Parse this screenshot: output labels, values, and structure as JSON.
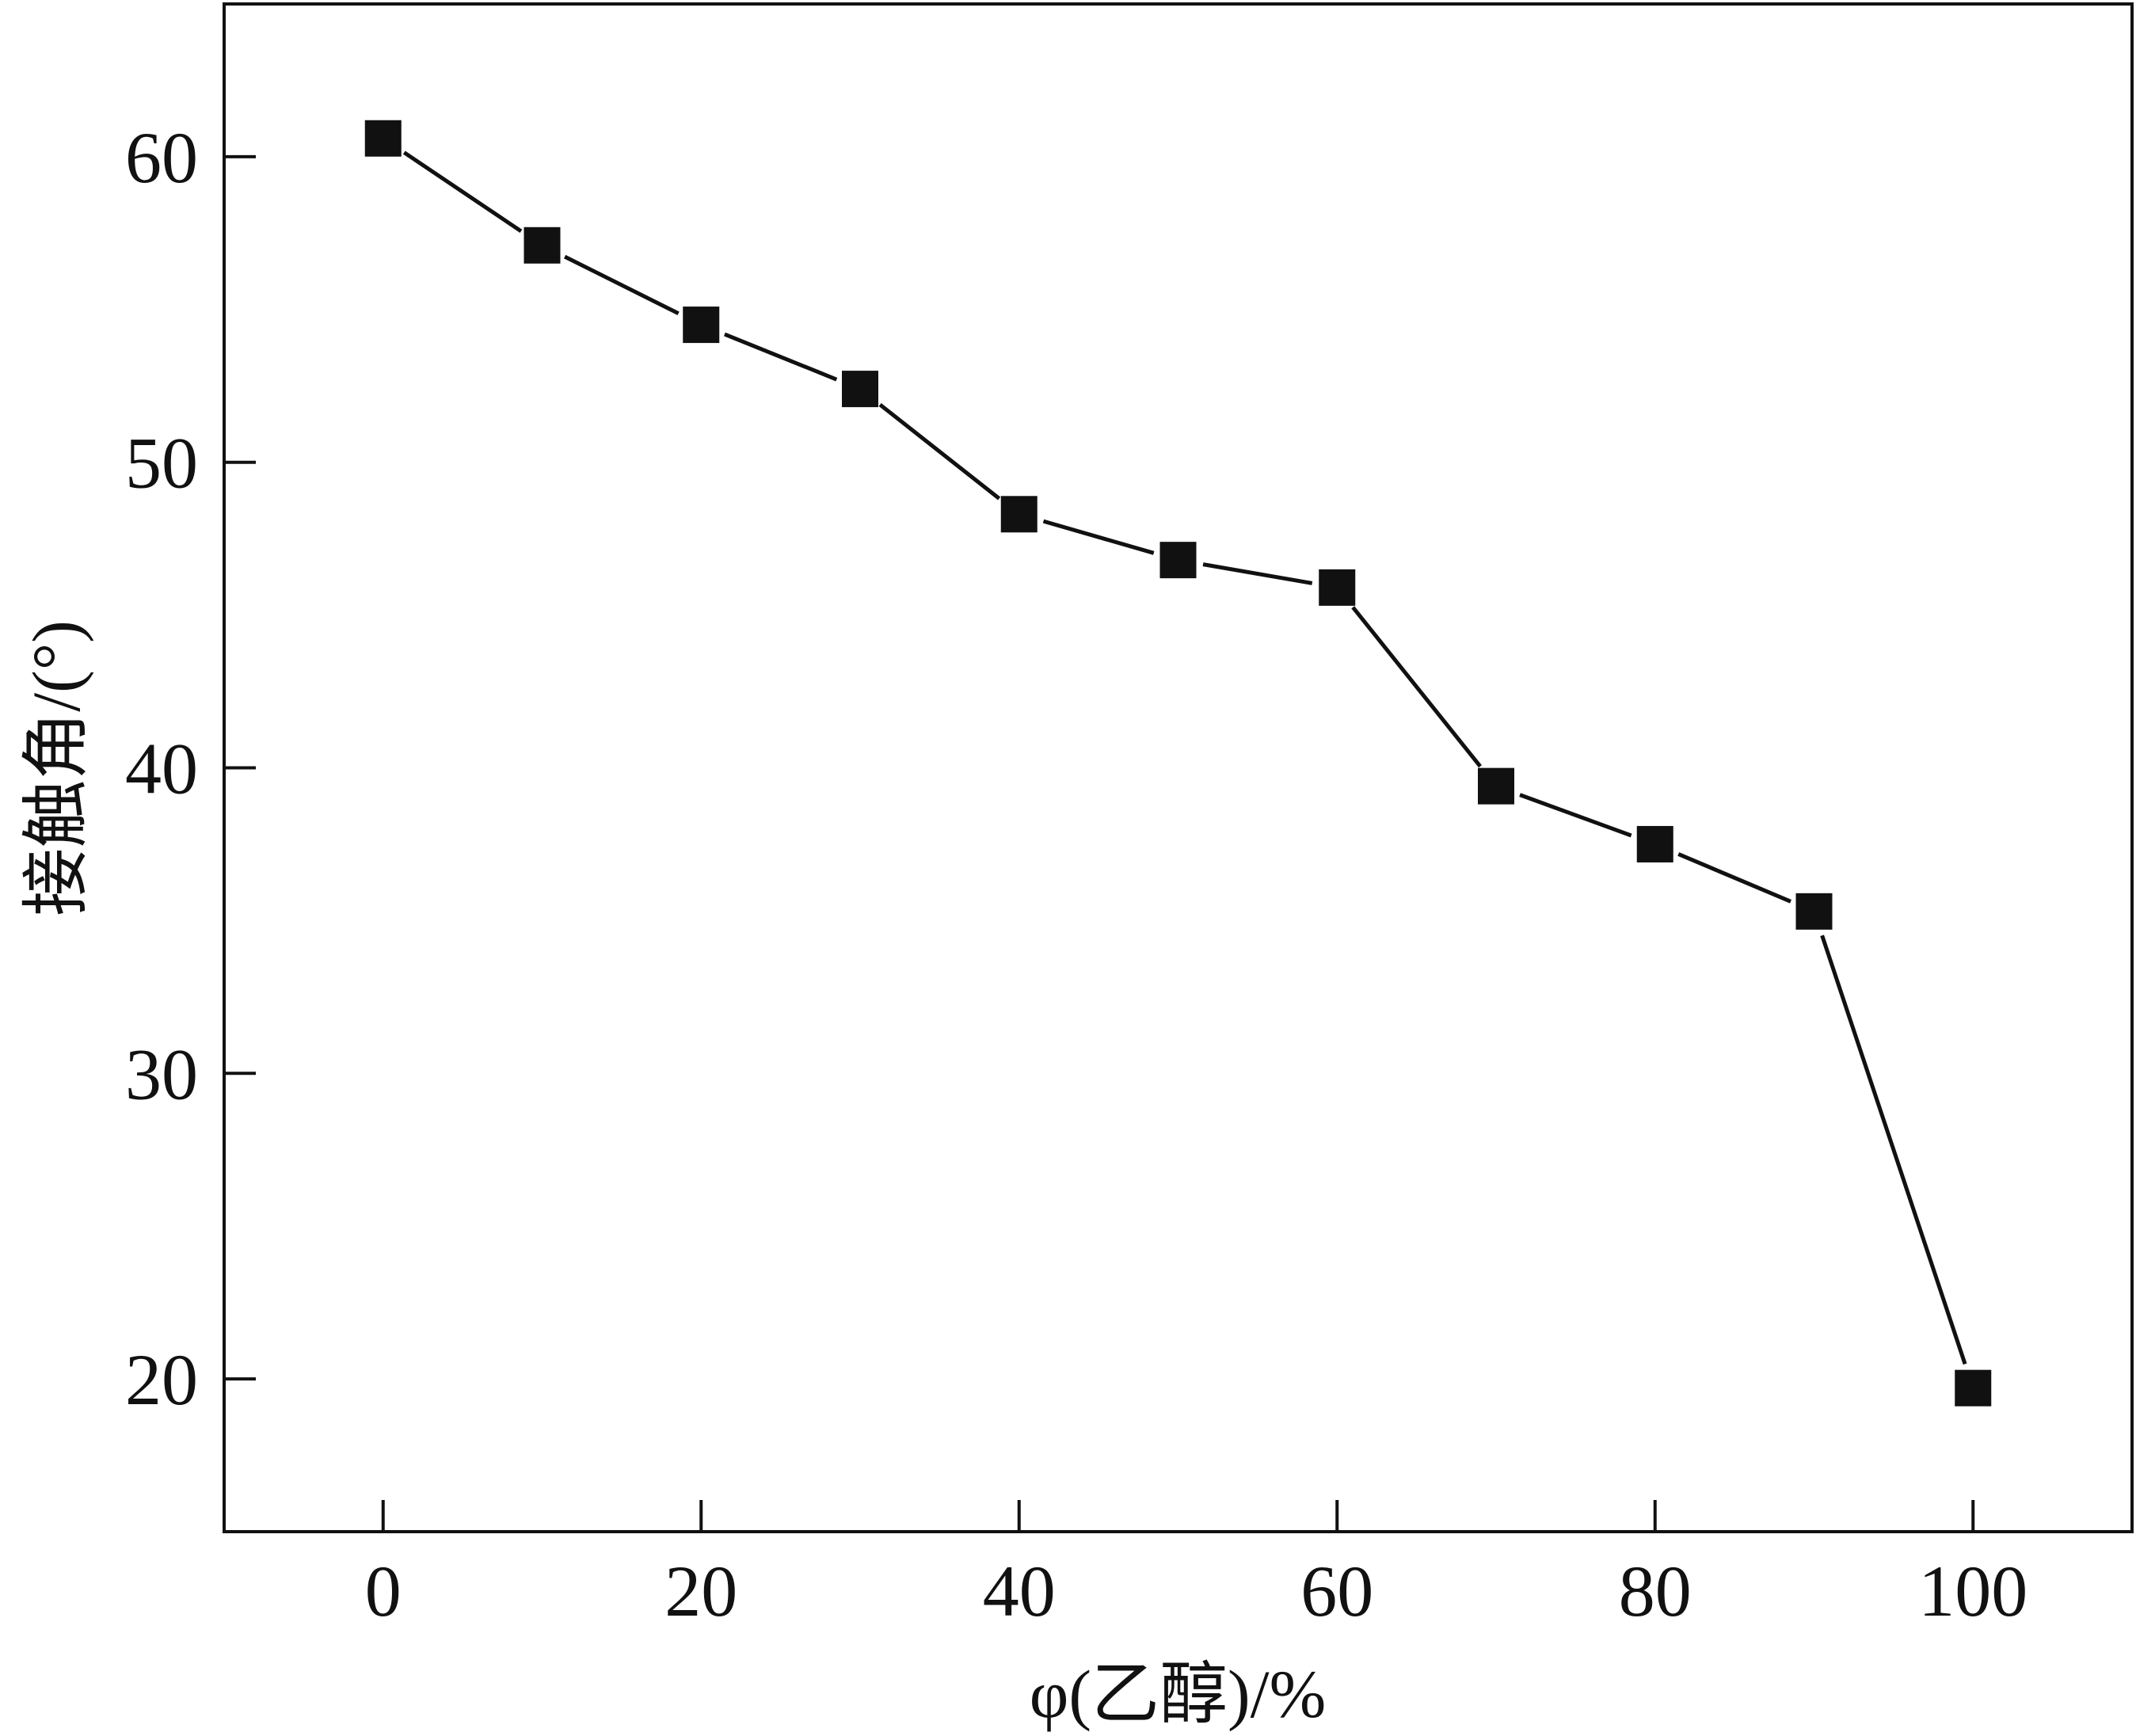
{
  "chart_data": {
    "type": "line",
    "title": "",
    "xlabel": "φ(乙醇)/%",
    "ylabel": "接触角/(°)",
    "xlim": [
      -10,
      110
    ],
    "ylim": [
      15,
      65
    ],
    "x_ticks": [
      0,
      20,
      40,
      60,
      80,
      100
    ],
    "y_ticks": [
      20,
      30,
      40,
      50,
      60
    ],
    "grid": false,
    "legend": "none",
    "marker": "filled-square",
    "color": "#111111",
    "series": [
      {
        "x": [
          0,
          10,
          20,
          30,
          40,
          50,
          60,
          70,
          80,
          90,
          100
        ],
        "y": [
          60.6,
          57.1,
          54.5,
          52.4,
          48.3,
          46.8,
          45.9,
          39.4,
          37.5,
          35.3,
          19.7
        ]
      }
    ]
  }
}
